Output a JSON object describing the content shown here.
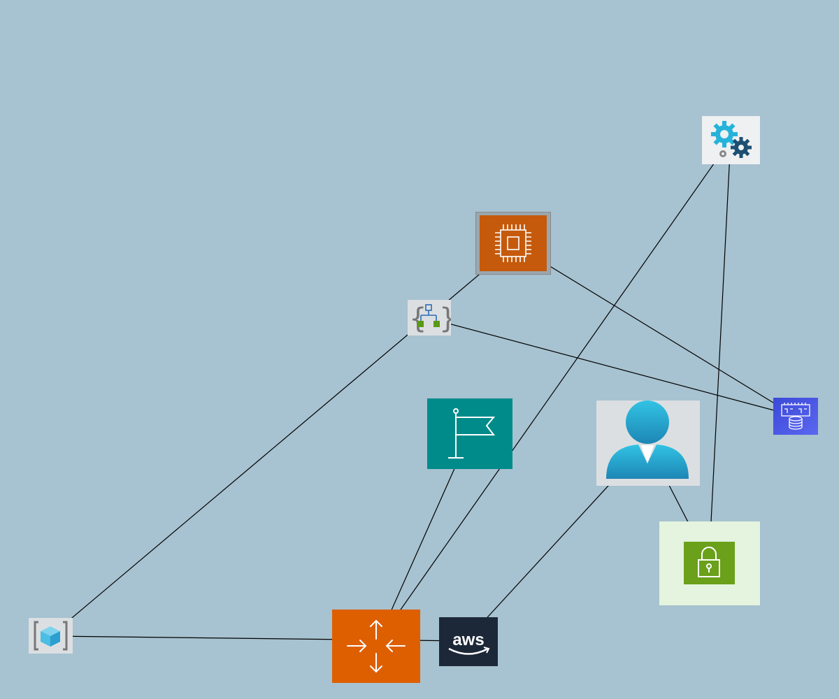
{
  "diagram": {
    "background": "#a7c2d0",
    "edge_color": "#000000",
    "nodes": [
      {
        "id": "gear-settings",
        "icon": "gear-settings-icon",
        "colors": {
          "bg": "#eef0f2",
          "primary": "#26b3d9",
          "secondary": "#1d4f73"
        }
      },
      {
        "id": "processor-chip",
        "icon": "processor-chip-icon",
        "colors": {
          "bg": "#c55a0c",
          "border": "#888888"
        }
      },
      {
        "id": "hierarchy-braces",
        "icon": "hierarchy-braces-icon",
        "colors": {
          "bg": "#dcdfe2",
          "primary": "#2c6db5",
          "secondary": "#5a9a12"
        }
      },
      {
        "id": "database-memory",
        "icon": "database-memory-icon",
        "colors": {
          "bg": "#4955e6"
        }
      },
      {
        "id": "milestone-flag",
        "icon": "flag-icon",
        "colors": {
          "bg": "#008b8b"
        }
      },
      {
        "id": "user-person",
        "icon": "user-icon",
        "colors": {
          "bg": "#dcdfe2",
          "primary": "#2ab5d9"
        }
      },
      {
        "id": "security-lock",
        "icon": "lock-icon",
        "colors": {
          "bg": "#e4f4de",
          "primary": "#6aa01a"
        }
      },
      {
        "id": "container-cube",
        "icon": "cube-braces-icon",
        "colors": {
          "bg": "#dcdfe2",
          "primary": "#3cb4d8"
        }
      },
      {
        "id": "router-arrows",
        "icon": "router-arrows-icon",
        "colors": {
          "bg": "#de5f00"
        }
      },
      {
        "id": "aws-logo",
        "icon": "aws-logo-icon",
        "text": "aws",
        "colors": {
          "bg": "#1c2838",
          "smile": "#ffffff"
        }
      }
    ],
    "edges": [
      {
        "from": "container-cube",
        "to": "processor-chip"
      },
      {
        "from": "processor-chip",
        "to": "database-memory"
      },
      {
        "from": "hierarchy-braces",
        "to": "database-memory"
      },
      {
        "from": "container-cube",
        "to": "aws-logo"
      },
      {
        "from": "router-arrows",
        "to": "milestone-flag"
      },
      {
        "from": "router-arrows",
        "to": "gear-settings"
      },
      {
        "from": "aws-logo",
        "to": "user-person"
      },
      {
        "from": "user-person",
        "to": "security-lock"
      },
      {
        "from": "security-lock",
        "to": "gear-settings"
      }
    ]
  }
}
